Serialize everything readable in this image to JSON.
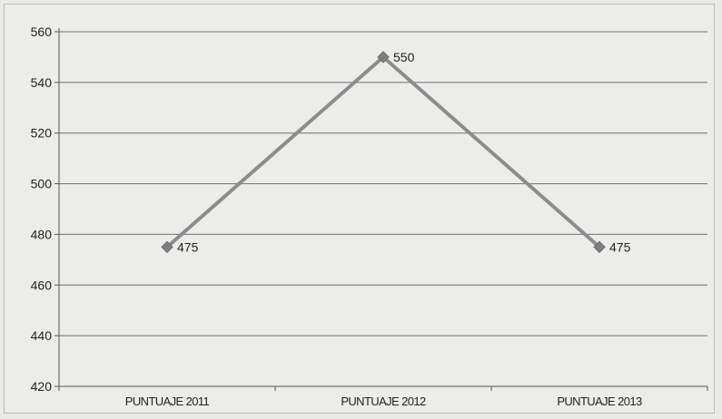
{
  "chart_data": {
    "type": "line",
    "title": "",
    "xlabel": "",
    "ylabel": "",
    "categories": [
      "PUNTUAJE 2011",
      "PUNTUAJE 2012",
      "PUNTUAJE 2013"
    ],
    "series": [
      {
        "values": [
          475,
          550,
          475
        ],
        "color": "#8c8c8c"
      }
    ],
    "data_labels": [
      "475",
      "550",
      "475"
    ],
    "ylim": [
      420,
      560
    ],
    "yticks": [
      420,
      440,
      460,
      480,
      500,
      520,
      540,
      560
    ],
    "grid": true,
    "legend": "none",
    "marker": "diamond"
  }
}
